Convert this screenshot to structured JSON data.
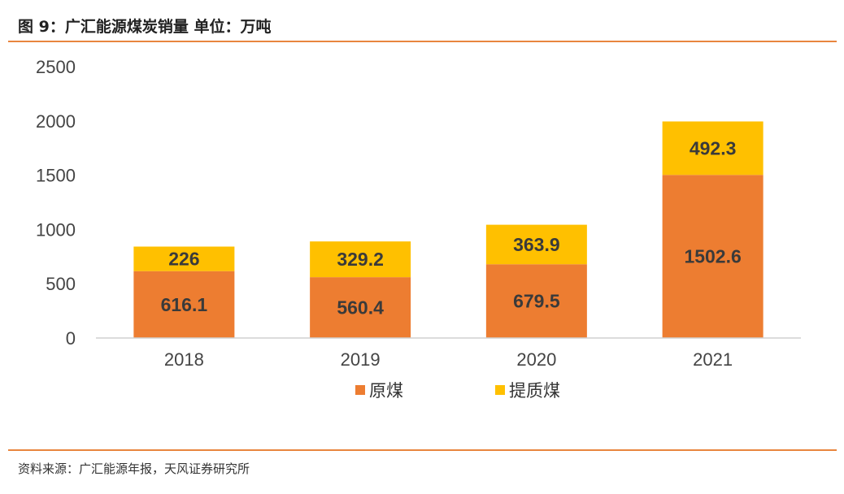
{
  "header": {
    "title": "图 9：广汇能源煤炭销量 单位：万吨"
  },
  "footer": {
    "source": "资料来源：广汇能源年报，天风证券研究所"
  },
  "colors": {
    "accent": "#e8863e",
    "raw_coal": "#ed7d31",
    "upgraded_coal": "#ffc000"
  },
  "chart_data": {
    "type": "bar",
    "stacked": true,
    "title": "广汇能源煤炭销量",
    "unit": "万吨",
    "categories": [
      "2018",
      "2019",
      "2020",
      "2021"
    ],
    "series": [
      {
        "name": "原煤",
        "values": [
          616.1,
          560.4,
          679.5,
          1502.6
        ],
        "labels": [
          "616.1",
          "560.4",
          "679.5",
          "1502.6"
        ]
      },
      {
        "name": "提质煤",
        "values": [
          226,
          329.2,
          363.9,
          492.3
        ],
        "labels": [
          "226",
          "329.2",
          "363.9",
          "492.3"
        ]
      }
    ],
    "ylim": [
      0,
      2500
    ],
    "yticks": [
      0,
      500,
      1000,
      1500,
      2000,
      2500
    ],
    "grid": false,
    "legend": "bottom"
  }
}
